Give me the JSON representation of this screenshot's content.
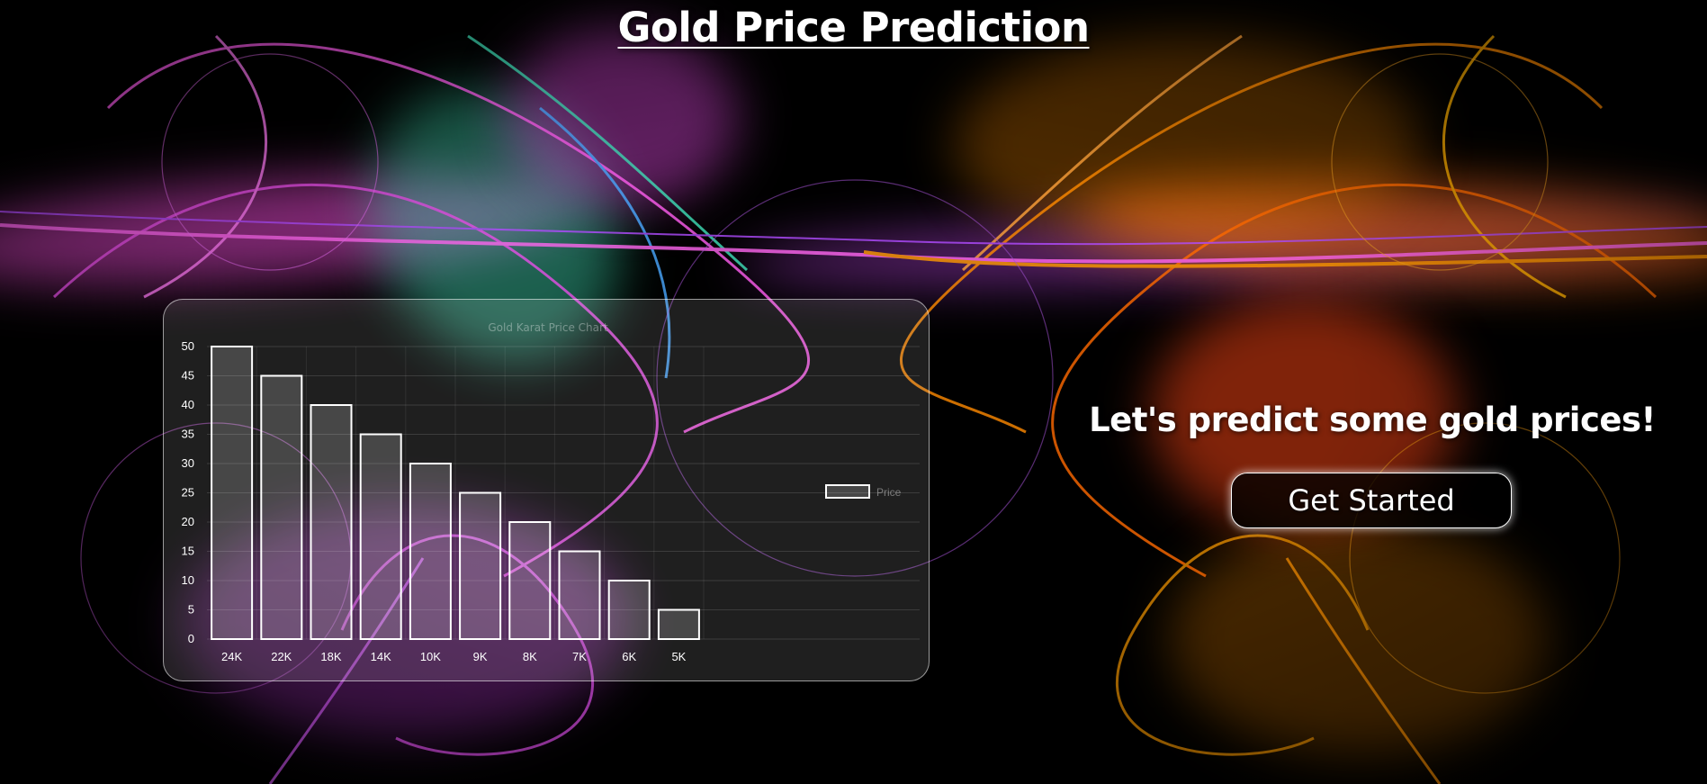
{
  "header": {
    "title": "Gold Price Prediction"
  },
  "hero": {
    "tagline": "Let's predict some gold prices!",
    "cta_label": "Get Started"
  },
  "colors": {
    "background": "#000000",
    "text": "#ffffff",
    "bar_stroke": "#ffffff",
    "bar_fill": "rgba(255,255,255,0.18)"
  },
  "chart_data": {
    "type": "bar",
    "title": "Gold Karat Price Chart",
    "categories": [
      "24K",
      "22K",
      "18K",
      "14K",
      "10K",
      "9K",
      "8K",
      "7K",
      "6K",
      "5K"
    ],
    "series": [
      {
        "name": "Price",
        "values": [
          50,
          45,
          40,
          35,
          30,
          25,
          20,
          15,
          10,
          5
        ]
      }
    ],
    "ylim": [
      0,
      50
    ],
    "yticks": [
      0,
      5,
      10,
      15,
      20,
      25,
      30,
      35,
      40,
      45,
      50
    ],
    "grid": true,
    "legend": "right"
  }
}
